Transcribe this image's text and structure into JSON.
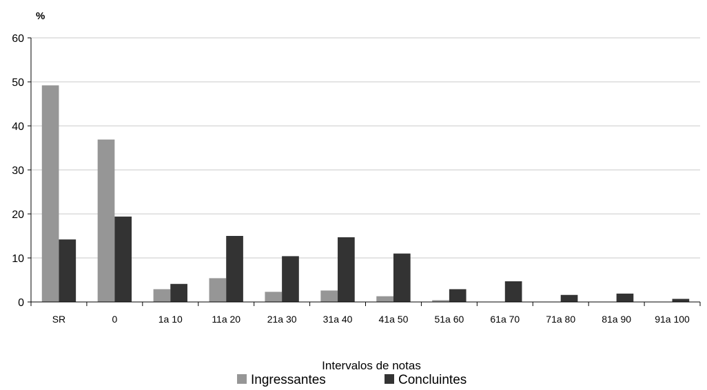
{
  "chart_data": {
    "type": "bar",
    "unit_label": "%",
    "xlabel": "Intervalos de notas",
    "ylabel": "",
    "ylim": [
      0,
      60
    ],
    "yticks": [
      0,
      10,
      20,
      30,
      40,
      50,
      60
    ],
    "grid": true,
    "legend_position": "bottom",
    "categories": [
      "SR",
      "0",
      "1a 10",
      "11a 20",
      "21a 30",
      "31a 40",
      "41a 50",
      "51a 60",
      "61a 70",
      "71a 80",
      "81a 90",
      "91a 100"
    ],
    "series": [
      {
        "name": "Ingressantes",
        "color": "#969696",
        "values": [
          49.2,
          36.9,
          2.9,
          5.4,
          2.3,
          2.6,
          1.3,
          0.4,
          0,
          0,
          0,
          0
        ]
      },
      {
        "name": "Concluintes",
        "color": "#333333",
        "values": [
          14.2,
          19.4,
          4.1,
          15.0,
          10.4,
          14.7,
          11.0,
          2.9,
          4.7,
          1.6,
          1.9,
          0.7
        ]
      }
    ]
  }
}
